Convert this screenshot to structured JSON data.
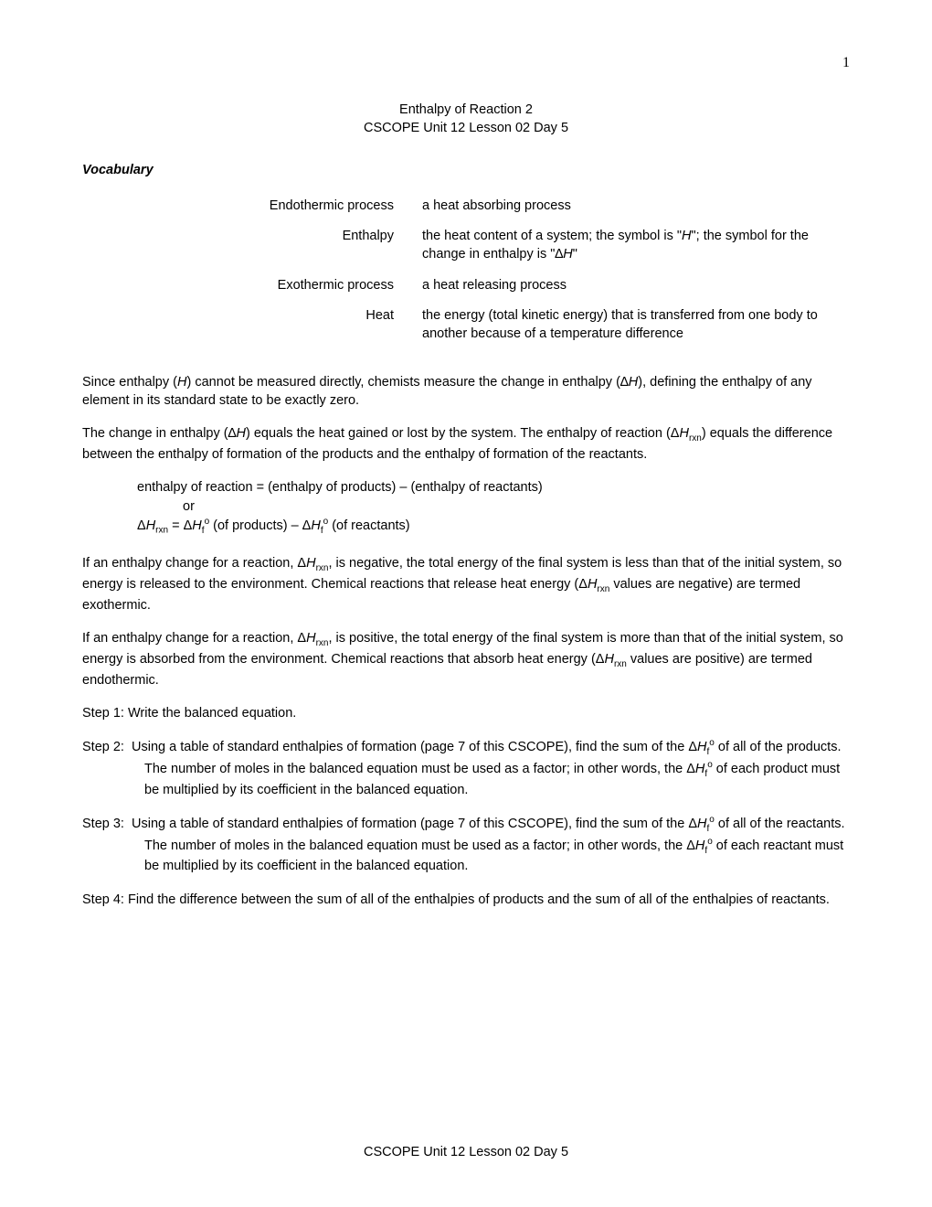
{
  "page_number": "1",
  "title_line1": "Enthalpy of Reaction 2",
  "title_line2": "CSCOPE Unit 12 Lesson 02 Day 5",
  "vocab_heading": "Vocabulary",
  "vocab": [
    {
      "term": "Endothermic process",
      "def": "a heat absorbing process"
    },
    {
      "term": "Enthalpy",
      "def_html": "the heat content of a system; the symbol is \"<span class=\"ital\">H</span>\"; the symbol for the change in enthalpy is \"∆<span class=\"ital\">H</span>\""
    },
    {
      "term": "Exothermic process",
      "def": "a heat releasing process"
    },
    {
      "term": "Heat",
      "def": "the energy (total kinetic energy) that is transferred from one body to another because of a temperature difference"
    }
  ],
  "para1_html": "Since enthalpy (<span class=\"ital\">H</span>) cannot be measured directly, chemists measure the change in enthalpy (∆<span class=\"ital\">H</span>), defining the enthalpy of any element in its standard state to be exactly zero.",
  "para2_html": "The change in enthalpy (∆<span class=\"ital\">H</span>) equals the heat gained or lost by the system. The enthalpy of reaction (Δ<span class=\"ital\">H</span><span class=\"sub-small\">rxn</span>) equals the difference between the enthalpy of formation of the products and the enthalpy of formation of the reactants.",
  "eq_line1": "enthalpy of reaction = (enthalpy of products) – (enthalpy of reactants)",
  "eq_or": "or",
  "eq_line2_html": "Δ<span class=\"ital\">H</span><span class=\"sub-small\">rxn</span> = <span class=\"formula\">Δ<span class=\"ital\">H</span><span class=\"sub-small\">f</span><span class=\"sup-small\">o</span></span> (of products) – <span class=\"formula\">Δ<span class=\"ital\">H</span><span class=\"sub-small\">f</span><span class=\"sup-small\">o</span></span> (of reactants)",
  "para3_html": "If an enthalpy change for a reaction, Δ<span class=\"ital\">H</span><span class=\"sub-small\">rxn</span>, is negative, the total energy of the final system is less than that of the initial system, so energy is released to the environment. Chemical reactions that release heat energy (Δ<span class=\"ital\">H</span><span class=\"sub-small\">rxn</span> values are negative) are termed exothermic.",
  "para4_html": "If an enthalpy change for a reaction, Δ<span class=\"ital\">H</span><span class=\"sub-small\">rxn</span>, is positive, the total energy of the final system is more than that of the initial system, so energy is absorbed from the environment. Chemical reactions that absorb heat energy (Δ<span class=\"ital\">H</span><span class=\"sub-small\">rxn</span> values are positive) are termed endothermic.",
  "step1": "Step 1: Write the balanced equation.",
  "step2_html": "Step 2:&nbsp;&nbsp;Using a table of standard enthalpies of formation (page 7 of this CSCOPE), find the sum of the <span class=\"formula\">Δ<span class=\"ital\">H</span><span class=\"sub-small\">f</span><span class=\"sup-small\">o</span></span> of all of the products. The number of moles in the balanced equation must be used as a factor; in other words, the <span class=\"formula\">Δ<span class=\"ital\">H</span><span class=\"sub-small\">f</span><span class=\"sup-small\">o</span></span> of each product must be multiplied by its coefficient in the balanced equation.",
  "step3_html": "Step 3:&nbsp;&nbsp;Using a table of standard enthalpies of formation (page 7 of this CSCOPE), find the sum of the <span class=\"formula\">Δ<span class=\"ital\">H</span><span class=\"sub-small\">f</span><span class=\"sup-small\">o</span></span> of all of the reactants. The number of moles in the balanced equation must be used as a factor; in other words, the <span class=\"formula\">Δ<span class=\"ital\">H</span><span class=\"sub-small\">f</span><span class=\"sup-small\">o</span></span> of each reactant must be multiplied by its coefficient in the balanced equation.",
  "step4": "Step 4: Find the difference between the sum of all of the enthalpies of products and the sum of all of the enthalpies of reactants.",
  "footer": "CSCOPE Unit 12 Lesson 02 Day 5"
}
